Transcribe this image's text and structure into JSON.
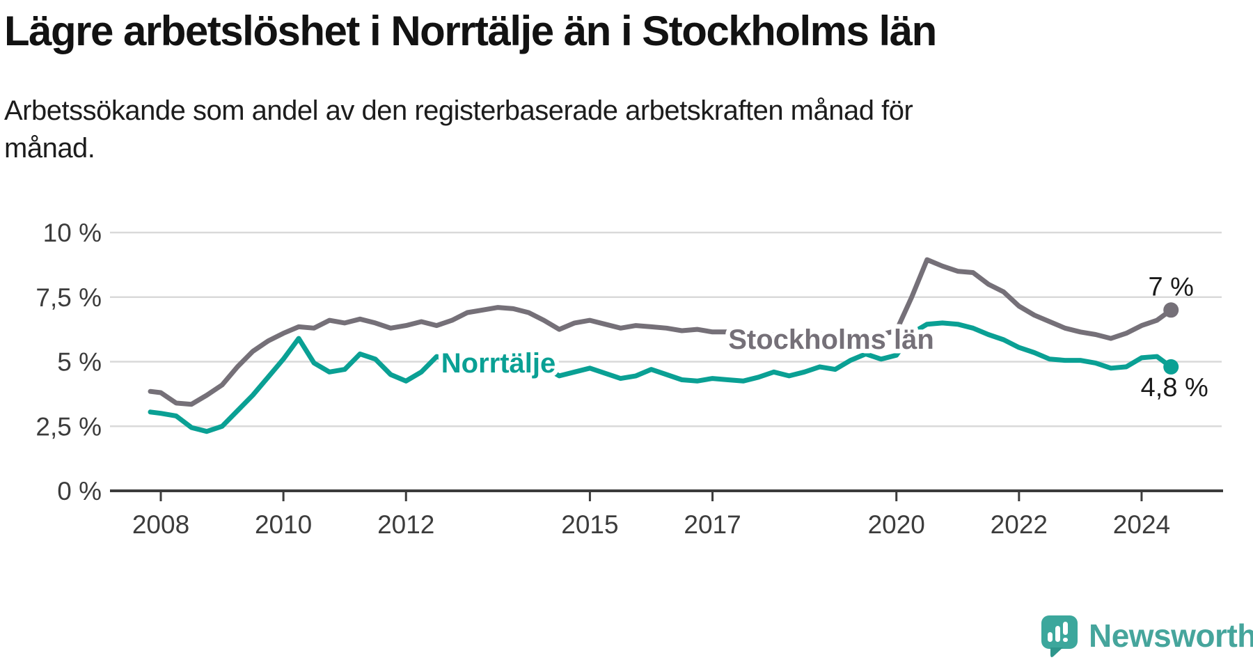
{
  "header": {
    "title": "Lägre arbetslöshet i Norrtälje än i Stockholms län",
    "subtitle": "Arbetssökande som andel av den registerbaserade arbetskraften månad för månad.",
    "subtitle_lines": [
      "Arbetssökande som andel av den registerbaserade arbetskraften månad för",
      "månad."
    ]
  },
  "footer": {
    "brand": "Newsworthy",
    "logo_icon": "speech-bubble-bar-chart"
  },
  "colors": {
    "norrtalje_teal": "#0aa094",
    "stockholm_gray": "#757078",
    "grid_gray": "#d9d9d9",
    "axis_dark": "#3c3c3c",
    "text_black": "#1a1a1a",
    "brand_teal": "#46a59c"
  },
  "chart_data": {
    "type": "line",
    "title": "Lägre arbetslöshet i Norrtälje än i Stockholms län",
    "xlabel": "",
    "ylabel": "Arbetssökande som andel av den registerbaserade arbetskraften (%)",
    "x_unit": "decimal_year",
    "grid": "horizontal",
    "legend": "inline-labels",
    "ylim": [
      0,
      10.6
    ],
    "xlim": [
      2007.6,
      2025.3
    ],
    "x": [
      2007.83,
      2008,
      2008.25,
      2008.5,
      2008.75,
      2009,
      2009.25,
      2009.5,
      2009.75,
      2010,
      2010.25,
      2010.5,
      2010.75,
      2011,
      2011.25,
      2011.5,
      2011.75,
      2012,
      2012.25,
      2012.5,
      2012.75,
      2013,
      2013.25,
      2013.5,
      2013.75,
      2014,
      2014.25,
      2014.5,
      2014.75,
      2015,
      2015.25,
      2015.5,
      2015.75,
      2016,
      2016.25,
      2016.5,
      2016.75,
      2017,
      2017.25,
      2017.5,
      2017.75,
      2018,
      2018.25,
      2018.5,
      2018.75,
      2019,
      2019.25,
      2019.5,
      2019.75,
      2020,
      2020.25,
      2020.5,
      2020.75,
      2021,
      2021.25,
      2021.5,
      2021.75,
      2022,
      2022.25,
      2022.5,
      2022.75,
      2023,
      2023.25,
      2023.5,
      2023.75,
      2024,
      2024.25,
      2024.48
    ],
    "series": [
      {
        "name": "Stockholms län",
        "color": "#757078",
        "end_label": "7 %",
        "end_value": 7.0,
        "values": [
          3.85,
          3.8,
          3.4,
          3.35,
          3.7,
          4.1,
          4.8,
          5.4,
          5.8,
          6.1,
          6.35,
          6.3,
          6.6,
          6.5,
          6.65,
          6.5,
          6.3,
          6.4,
          6.55,
          6.4,
          6.6,
          6.9,
          7.0,
          7.1,
          7.05,
          6.9,
          6.6,
          6.25,
          6.5,
          6.6,
          6.45,
          6.3,
          6.4,
          6.35,
          6.3,
          6.2,
          6.25,
          6.15,
          6.15,
          6.05,
          6.0,
          6.05,
          6.1,
          6.0,
          6.05,
          6.1,
          6.05,
          6.0,
          6.05,
          6.2,
          7.5,
          8.95,
          8.7,
          8.5,
          8.45,
          8.0,
          7.7,
          7.15,
          6.8,
          6.55,
          6.3,
          6.15,
          6.05,
          5.9,
          6.1,
          6.4,
          6.6,
          7.0
        ]
      },
      {
        "name": "Norrtälje",
        "color": "#0aa094",
        "end_label": "4,8 %",
        "end_value": 4.8,
        "values": [
          3.05,
          3.0,
          2.9,
          2.45,
          2.3,
          2.5,
          3.1,
          3.7,
          4.4,
          5.1,
          5.9,
          4.95,
          4.6,
          4.7,
          5.3,
          5.1,
          4.5,
          4.25,
          4.6,
          5.2,
          5.0,
          4.95,
          4.7,
          5.0,
          5.25,
          5.1,
          4.8,
          4.45,
          4.6,
          4.75,
          4.55,
          4.35,
          4.45,
          4.7,
          4.5,
          4.3,
          4.25,
          4.35,
          4.3,
          4.25,
          4.4,
          4.6,
          4.45,
          4.6,
          4.8,
          4.7,
          5.05,
          5.3,
          5.1,
          5.25,
          6.1,
          6.45,
          6.5,
          6.45,
          6.3,
          6.05,
          5.85,
          5.55,
          5.35,
          5.1,
          5.05,
          5.05,
          4.95,
          4.75,
          4.8,
          5.15,
          5.2,
          4.8
        ]
      }
    ],
    "y_ticks": [
      {
        "value": 0,
        "label": "0 %"
      },
      {
        "value": 2.5,
        "label": "2,5 %"
      },
      {
        "value": 5,
        "label": "5 %"
      },
      {
        "value": 7.5,
        "label": "7,5 %"
      },
      {
        "value": 10,
        "label": "10 %"
      }
    ],
    "x_ticks": [
      {
        "value": 2008,
        "label": "2008"
      },
      {
        "value": 2010,
        "label": "2010"
      },
      {
        "value": 2012,
        "label": "2012"
      },
      {
        "value": 2015,
        "label": "2015"
      },
      {
        "value": 2017,
        "label": "2017"
      },
      {
        "value": 2020,
        "label": "2020"
      },
      {
        "value": 2022,
        "label": "2022"
      },
      {
        "value": 2024,
        "label": "2024"
      }
    ]
  }
}
